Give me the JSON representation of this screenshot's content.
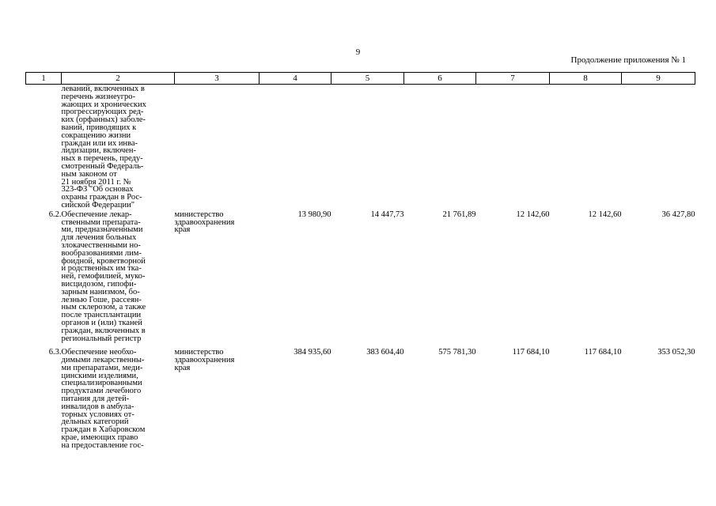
{
  "page_number": "9",
  "continuation_label": "Продолжение приложения № 1",
  "table": {
    "headers": [
      "1",
      "2",
      "3",
      "4",
      "5",
      "6",
      "7",
      "8",
      "9"
    ],
    "rows": [
      {
        "num": "",
        "desc": "леваний, включенных в\nперечень жизнеугро-\nжающих и хронических\nпрогрессирующих ред-\nких (орфанных) заболе-\nваний, приводящих к\nсокращению жизни\nграждан или их инва-\nлидизации, включен-\nных в перечень, преду-\nсмотренный Федераль-\nным законом от\n21 ноября 2011 г. №\n323-ФЗ \"Об основах\nохраны граждан в Рос-\nсийской Федерации\"",
        "org": "",
        "v4": "",
        "v5": "",
        "v6": "",
        "v7": "",
        "v8": "",
        "v9": ""
      },
      {
        "num": "6.2.",
        "desc": "Обеспечение лекар-\nственными препарата-\nми, предназначенными\nдля лечения больных\nзлокачественными но-\nвообразованиями лим-\nфоидной, кроветворной\nи родственных им тка-\nней, гемофилией, муко-\nвисцидозом, гипофи-\nзарным нанизмом, бо-\nлезнью Гоше, рассеян-\nным склерозом, а также\nпосле трансплантации\nорганов и (или) тканей\nграждан, включенных в\nрегиональный регистр",
        "org": "министерство\nздравоохранения\nкрая",
        "v4": "13 980,90",
        "v5": "14 447,73",
        "v6": "21 761,89",
        "v7": "12 142,60",
        "v8": "12 142,60",
        "v9": "36 427,80"
      },
      {
        "num": "6.3.",
        "desc": "Обеспечение необхо-\nдимыми лекарственны-\nми препаратами, меди-\nцинскими изделиями,\nспециализированными\nпродуктами лечебного\nпитания для детей-\nинвалидов в амбула-\nторных условиях от-\nдельных категорий\nграждан в Хабаровском\nкрае, имеющих право\nна предоставление гос-",
        "org": "министерство\nздравоохранения\nкрая",
        "v4": "384 935,60",
        "v5": "383 604,40",
        "v6": "575 781,30",
        "v7": "117 684,10",
        "v8": "117 684,10",
        "v9": "353 052,30"
      }
    ]
  }
}
